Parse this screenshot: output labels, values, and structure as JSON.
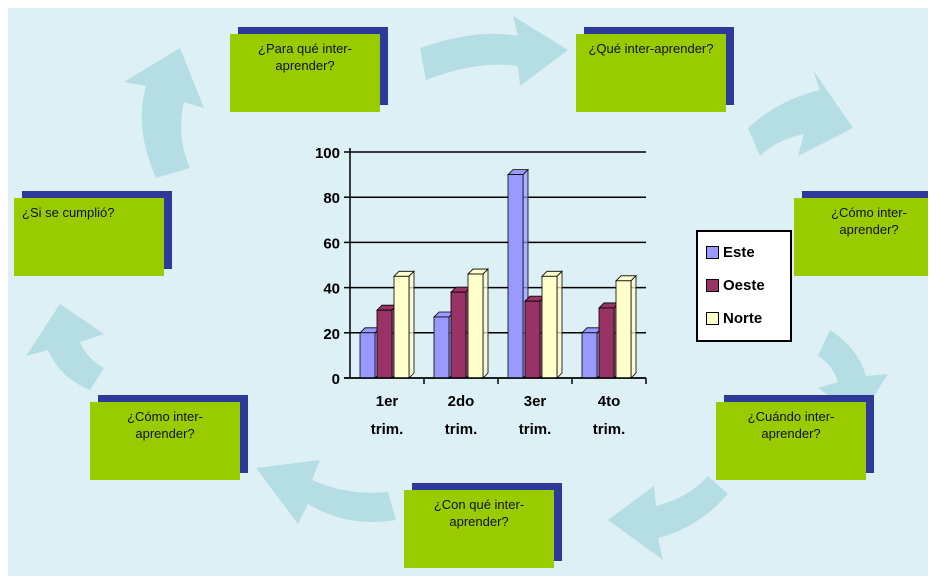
{
  "boxes": {
    "top_left": "¿Para qué inter-aprender?",
    "top_right": "¿Qué inter-aprender?",
    "right_upper": "¿Cómo inter-aprender?",
    "right_lower": "¿Cuándo inter-aprender?",
    "bottom": "¿Con qué inter-aprender?",
    "left_lower": "¿Cómo inter-aprender?",
    "left_upper": "¿Si se cumplió?"
  },
  "colors": {
    "canvas": "#ddf0f5",
    "arrow": "#b5dde4",
    "box": "#99cc00",
    "box_shadow": "#2e3a9a",
    "este": "#9999ff",
    "oeste": "#993366",
    "norte": "#ffffcc"
  },
  "icons": [
    "curved-arrow-icon"
  ],
  "chart_data": {
    "type": "bar",
    "categories": [
      "1er trim.",
      "2do trim.",
      "3er trim.",
      "4to trim."
    ],
    "category_lines": [
      [
        "1er",
        "trim."
      ],
      [
        "2do",
        "trim."
      ],
      [
        "3er",
        "trim."
      ],
      [
        "4to",
        "trim."
      ]
    ],
    "series": [
      {
        "name": "Este",
        "values": [
          20,
          27,
          90,
          20
        ]
      },
      {
        "name": "Oeste",
        "values": [
          30,
          38,
          34,
          31
        ]
      },
      {
        "name": "Norte",
        "values": [
          45,
          46,
          45,
          43
        ]
      }
    ],
    "ylim": [
      0,
      100
    ],
    "yticks": [
      0,
      20,
      40,
      60,
      80,
      100
    ],
    "grid": true,
    "legend_placement": "right",
    "title": "",
    "xlabel": "",
    "ylabel": ""
  }
}
